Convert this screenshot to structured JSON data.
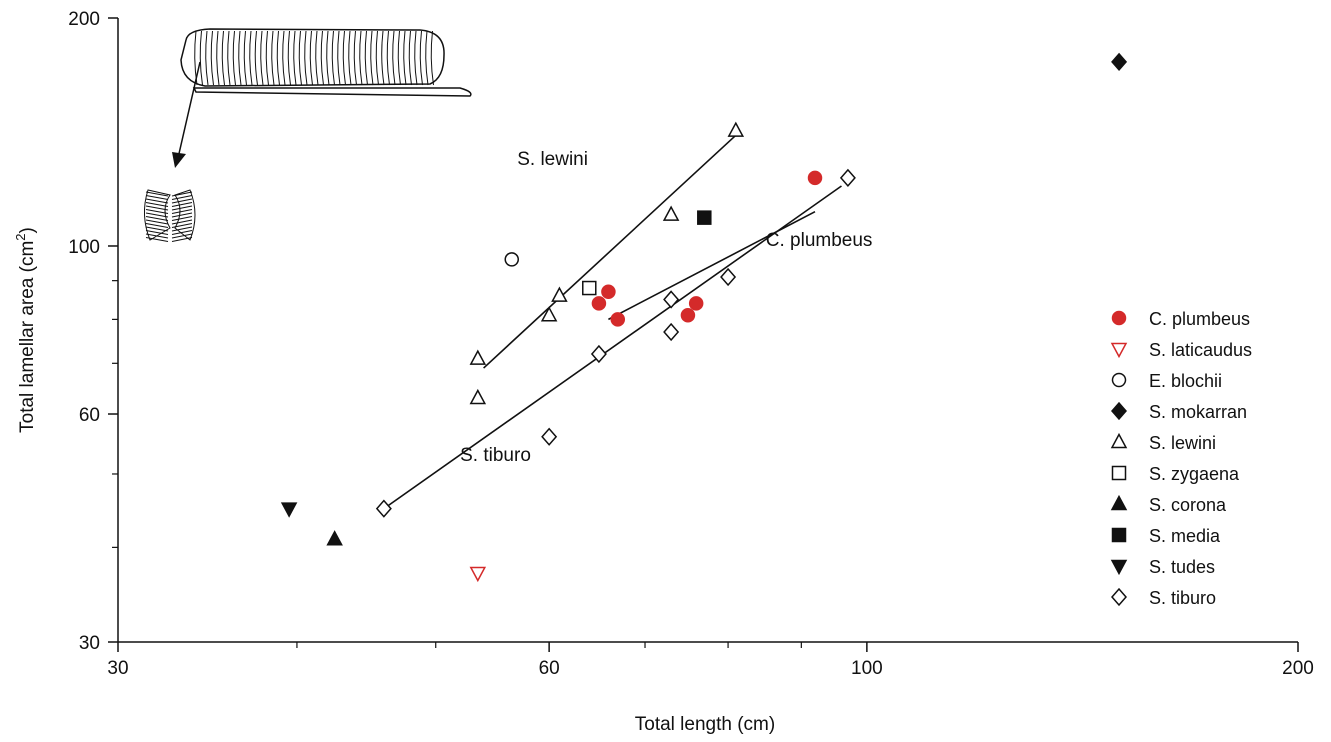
{
  "chart_data": {
    "type": "scatter",
    "xlabel": "Total length (cm)",
    "ylabel_main": "Total lamellar area (cm",
    "ylabel_sup": "2",
    "ylabel_tail": ")",
    "x_scale": "log",
    "y_scale": "log",
    "xlim": [
      30,
      200
    ],
    "ylim": [
      30,
      200
    ],
    "x_ticks": [
      30,
      60,
      100,
      200
    ],
    "x_minor_ticks": [
      40,
      50,
      70,
      80,
      90
    ],
    "y_ticks": [
      30,
      60,
      100,
      200
    ],
    "y_minor_ticks": [
      40,
      50,
      70,
      80,
      90
    ],
    "grid": false,
    "legend_position": "right",
    "series": [
      {
        "name": "C. plumbeus",
        "marker": "circle",
        "filled": true,
        "color": "#d42a2a",
        "points": [
          [
            65,
            84
          ],
          [
            66,
            87
          ],
          [
            67,
            80
          ],
          [
            75,
            81
          ],
          [
            76,
            84
          ],
          [
            92,
            123
          ]
        ]
      },
      {
        "name": "S. laticaudus",
        "marker": "triangle-down",
        "filled": false,
        "color": "#d42a2a",
        "points": [
          [
            53.5,
            37
          ]
        ]
      },
      {
        "name": "E. blochii",
        "marker": "circle",
        "filled": false,
        "color": "#111111",
        "points": [
          [
            56.5,
            96
          ]
        ]
      },
      {
        "name": "S. mokarran",
        "marker": "diamond",
        "filled": true,
        "color": "#111111",
        "points": [
          [
            150,
            175
          ]
        ]
      },
      {
        "name": "S. lewini",
        "marker": "triangle-up",
        "filled": false,
        "color": "#111111",
        "points": [
          [
            53.5,
            63
          ],
          [
            53.5,
            71
          ],
          [
            60,
            81
          ],
          [
            61,
            86
          ],
          [
            73,
            110
          ],
          [
            81,
            142
          ]
        ]
      },
      {
        "name": "S. zygaena",
        "marker": "square",
        "filled": false,
        "color": "#111111",
        "points": [
          [
            64,
            88
          ]
        ]
      },
      {
        "name": "S. corona",
        "marker": "triangle-up",
        "filled": true,
        "color": "#111111",
        "points": [
          [
            42.5,
            41
          ]
        ]
      },
      {
        "name": "S. media",
        "marker": "square",
        "filled": true,
        "color": "#111111",
        "points": [
          [
            77,
            109
          ]
        ]
      },
      {
        "name": "S. tudes",
        "marker": "triangle-down",
        "filled": true,
        "color": "#111111",
        "points": [
          [
            39.5,
            45
          ]
        ]
      },
      {
        "name": "S. tiburo",
        "marker": "diamond",
        "filled": false,
        "color": "#111111",
        "points": [
          [
            46,
            45
          ],
          [
            60,
            56
          ],
          [
            65,
            72
          ],
          [
            73,
            77
          ],
          [
            73,
            85
          ],
          [
            80,
            91
          ],
          [
            97,
            123
          ]
        ]
      }
    ],
    "regression_lines": [
      {
        "series": "S. lewini",
        "from": [
          54,
          69
        ],
        "to": [
          81,
          140
        ]
      },
      {
        "series": "C. plumbeus",
        "from": [
          66,
          80
        ],
        "to": [
          92,
          111
        ]
      },
      {
        "series": "S. tiburo",
        "from": [
          46,
          45
        ],
        "to": [
          96,
          120
        ]
      }
    ],
    "line_labels": [
      {
        "text": "S. lewini",
        "at": [
          57,
          128
        ]
      },
      {
        "text": "C. plumbeus",
        "at": [
          85,
          100
        ]
      },
      {
        "text": "S. tiburo",
        "at": [
          52,
          52
        ]
      }
    ]
  }
}
